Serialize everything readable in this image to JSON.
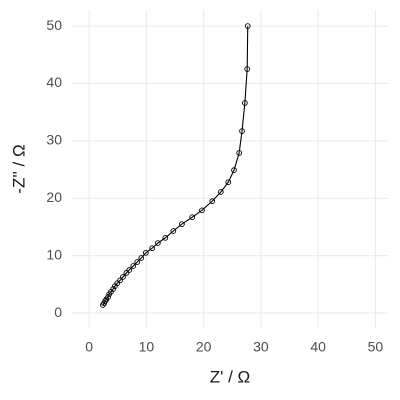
{
  "chart_data": {
    "type": "line",
    "x_label": "Z' / Ω",
    "y_label": "-Z'' / Ω",
    "x": [
      27.7,
      27.6,
      27.2,
      26.7,
      26.2,
      25.3,
      24.3,
      23.0,
      21.5,
      19.7,
      18.0,
      16.2,
      14.7,
      13.3,
      12.0,
      11.0,
      9.9,
      9.1,
      8.4,
      7.7,
      7.0,
      6.5,
      5.9,
      5.4,
      4.9,
      4.5,
      4.2,
      3.8,
      3.5,
      3.3,
      3.0,
      2.8,
      2.6,
      2.4
    ],
    "series": [
      {
        "color": "#000000",
        "marker": "open-circle",
        "values": [
          50,
          42.5,
          36.6,
          31.7,
          27.9,
          24.9,
          22.8,
          21.1,
          19.5,
          17.9,
          16.7,
          15.5,
          14.3,
          13.1,
          12.2,
          11.3,
          10.5,
          9.6,
          8.9,
          8.2,
          7.5,
          7.0,
          6.3,
          5.7,
          5.2,
          4.7,
          4.2,
          3.7,
          3.3,
          2.8,
          2.4,
          2.1,
          1.7,
          1.4
        ]
      }
    ],
    "xlim": [
      -3,
      52.2
    ],
    "ylim": [
      -2.6,
      52.8
    ],
    "xticks": [
      0,
      10,
      20,
      30,
      40,
      50
    ],
    "yticks": [
      0,
      10,
      20,
      30,
      40,
      50
    ],
    "grid": true
  }
}
